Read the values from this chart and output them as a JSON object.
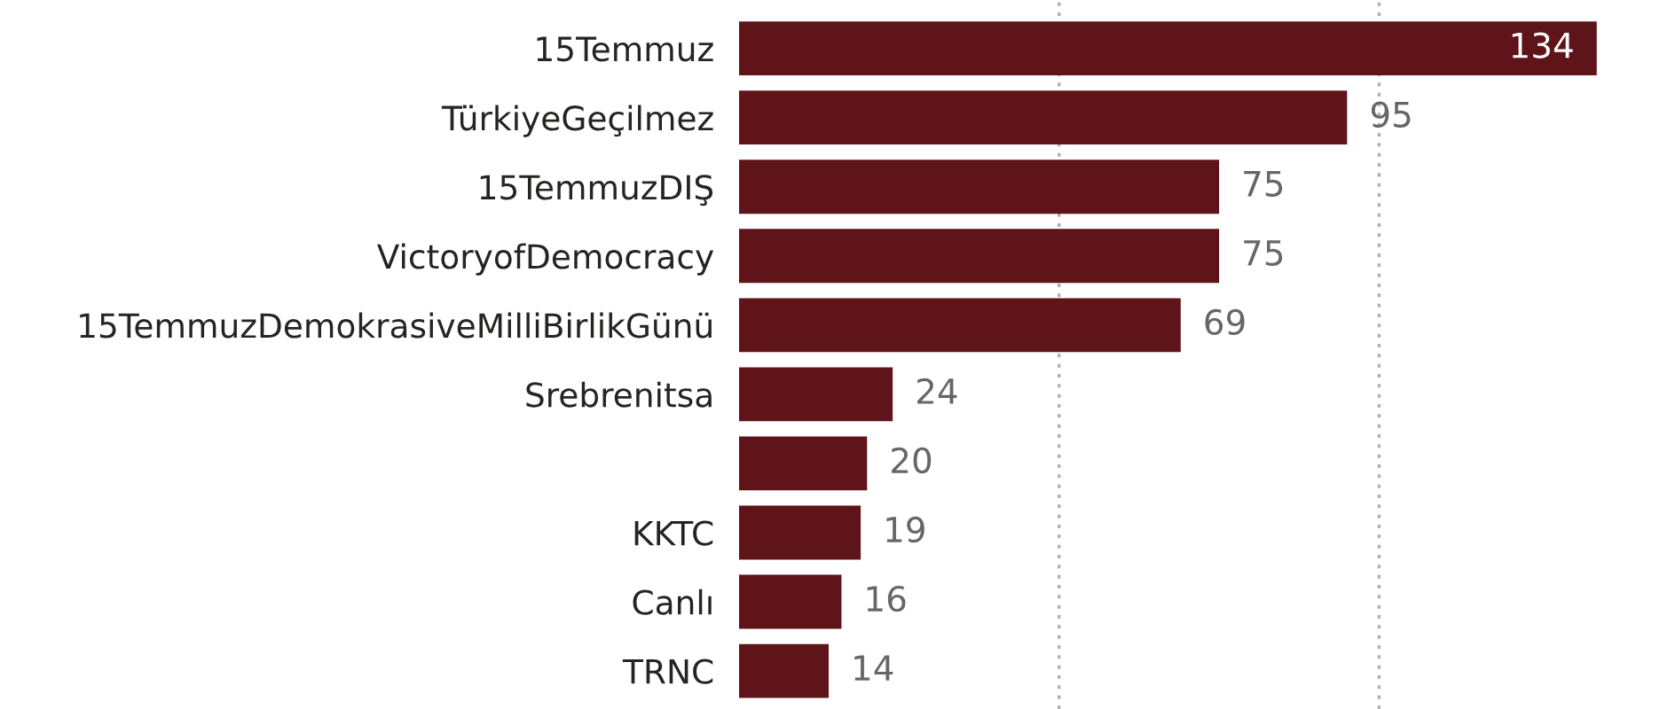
{
  "chart_data": {
    "type": "bar",
    "orientation": "horizontal",
    "categories": [
      "15Temmuz",
      "TürkiyeGeçilmez",
      "15TemmuzDIŞ",
      "VictoryofDemocracy",
      "15TemmuzDemokrasiveMilliBirlikGünü",
      "Srebrenitsa",
      null,
      "KKTC",
      "Canlı",
      "TRNC"
    ],
    "values": [
      134,
      95,
      75,
      75,
      69,
      24,
      20,
      19,
      16,
      14
    ],
    "color": "#5f1419",
    "data_labels": true,
    "ref_lines": [
      {
        "axis": "x",
        "value": 50,
        "color": "#b0b0b0",
        "line_style": "dotted"
      },
      {
        "axis": "x",
        "value": 100,
        "color": "#b0b0b0",
        "line_style": "dotted"
      }
    ],
    "tick_labels": "y"
  }
}
